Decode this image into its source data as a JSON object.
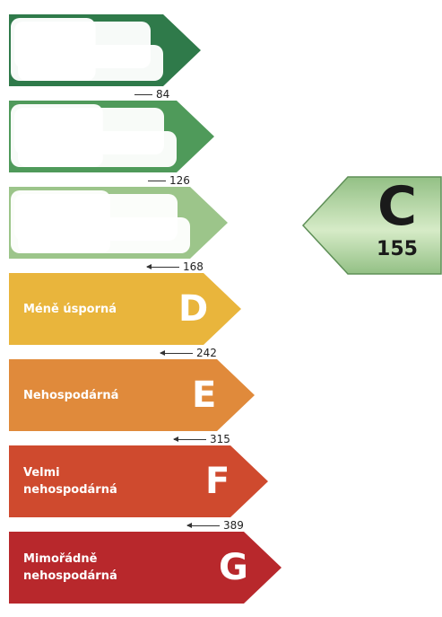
{
  "bands": [
    {
      "letter": "",
      "label": "",
      "color": "#2f7a4a",
      "arrow_kind": "plain",
      "threshold": "84",
      "obscured": true
    },
    {
      "letter": "",
      "label": "",
      "color": "#4f9a5a",
      "arrow_kind": "plain",
      "threshold": "126",
      "obscured": true
    },
    {
      "letter": "",
      "label": "",
      "color": "#9cc58a",
      "arrow_kind": "arrow",
      "threshold": "168",
      "obscured": true
    },
    {
      "letter": "D",
      "label": "Méně úsporná",
      "color": "#e9b53c",
      "arrow_kind": "arrow",
      "threshold": "242",
      "obscured": false
    },
    {
      "letter": "E",
      "label": "Nehospodárná",
      "color": "#e08a3b",
      "arrow_kind": "arrow",
      "threshold": "315",
      "obscured": false
    },
    {
      "letter": "F",
      "label": "Velmi\nnehospodárná",
      "color": "#cf4a2e",
      "arrow_kind": "arrow",
      "threshold": "389",
      "obscured": false
    },
    {
      "letter": "G",
      "label": "Mimořádně\nnehospodárná",
      "color": "#b8282c",
      "arrow_kind": "none",
      "threshold": "",
      "obscured": false
    }
  ],
  "rating": {
    "letter": "C",
    "value": "155",
    "color": "#93c085",
    "color_light": "#d6ebc7"
  }
}
